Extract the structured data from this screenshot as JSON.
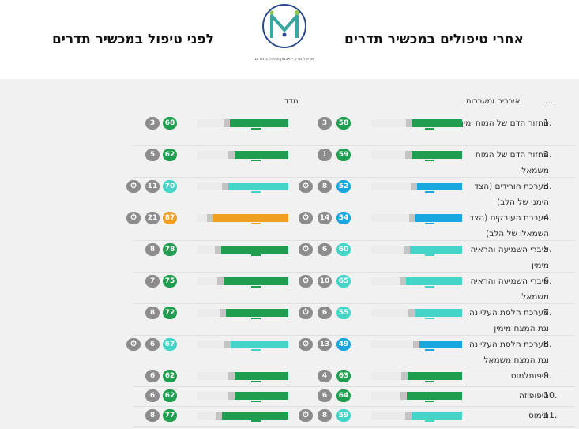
{
  "header": {
    "title_after": "אחרי טיפולים במכשיר תדרים",
    "title_before": "לפני טיפול במכשיר תדרים",
    "logo_caption": "אריאל מרק - אבחון וטיפול בתדרים"
  },
  "table": {
    "menu": "...",
    "col_organs": "איברים ומערכות",
    "col_index": "מדד"
  },
  "colors": {
    "green": "#1e9e4e",
    "teal": "#45d4c8",
    "blue": "#1aa7e0",
    "orange": "#f0a020",
    "gray": "#8c8c8c"
  },
  "rows": [
    {
      "num": "1.",
      "label": "מחזור הדם של המוח ימין",
      "after": {
        "score": "58",
        "level": 58,
        "color": "green",
        "badge2": "3",
        "clock": false
      },
      "before": {
        "score": "68",
        "level": 68,
        "color": "green",
        "badge2": "3",
        "clock": false
      }
    },
    {
      "num": "2.",
      "label": "מחזור הדם של המוח משמאל",
      "after": {
        "score": "59",
        "level": 59,
        "color": "green",
        "badge2": "1",
        "clock": false
      },
      "before": {
        "score": "62",
        "level": 62,
        "color": "green",
        "badge2": "5",
        "clock": false
      }
    },
    {
      "num": "3.",
      "label": "מערכת הורידים (הצד הימני של הלב)",
      "after": {
        "score": "52",
        "level": 52,
        "color": "blue",
        "badge2": "8",
        "clock": true
      },
      "before": {
        "score": "70",
        "level": 70,
        "color": "teal",
        "badge2": "11",
        "clock": true
      }
    },
    {
      "num": "4.",
      "label": "מערכת העורקים (הצד השמאלי של הלב)",
      "after": {
        "score": "54",
        "level": 54,
        "color": "blue",
        "badge2": "14",
        "clock": true
      },
      "before": {
        "score": "87",
        "level": 87,
        "color": "orange",
        "badge2": "21",
        "clock": true
      }
    },
    {
      "num": "5.",
      "label": "איברי השמיעה והראיה מימין",
      "after": {
        "score": "60",
        "level": 60,
        "color": "teal",
        "badge2": "6",
        "clock": true
      },
      "before": {
        "score": "78",
        "level": 78,
        "color": "green",
        "badge2": "8",
        "clock": false
      }
    },
    {
      "num": "6.",
      "label": "איברי השמיעה והראיה משמאל",
      "after": {
        "score": "65",
        "level": 65,
        "color": "teal",
        "badge2": "10",
        "clock": true
      },
      "before": {
        "score": "75",
        "level": 75,
        "color": "green",
        "badge2": "7",
        "clock": false
      }
    },
    {
      "num": "7.",
      "label": "מערכת הלסת העליונה וגת המצח מימין",
      "after": {
        "score": "55",
        "level": 55,
        "color": "teal",
        "badge2": "6",
        "clock": true
      },
      "before": {
        "score": "72",
        "level": 72,
        "color": "green",
        "badge2": "8",
        "clock": false
      }
    },
    {
      "num": "8.",
      "label": "מערכת הלסת העליונה וגת המצח משמאל",
      "after": {
        "score": "49",
        "level": 49,
        "color": "blue",
        "badge2": "13",
        "clock": true
      },
      "before": {
        "score": "67",
        "level": 67,
        "color": "teal",
        "badge2": "6",
        "clock": true
      }
    },
    {
      "num": "9.",
      "label": "היפותלמוס",
      "after": {
        "score": "63",
        "level": 63,
        "color": "green",
        "badge2": "4",
        "clock": false
      },
      "before": {
        "score": "62",
        "level": 62,
        "color": "green",
        "badge2": "6",
        "clock": false
      }
    },
    {
      "num": "10.",
      "label": "היפופיזה",
      "after": {
        "score": "64",
        "level": 64,
        "color": "green",
        "badge2": "6",
        "clock": false
      },
      "before": {
        "score": "62",
        "level": 62,
        "color": "green",
        "badge2": "6",
        "clock": false
      }
    },
    {
      "num": "11.",
      "label": "תימוס",
      "after": {
        "score": "59",
        "level": 59,
        "color": "teal",
        "badge2": "8",
        "clock": true
      },
      "before": {
        "score": "77",
        "level": 77,
        "color": "green",
        "badge2": "8",
        "clock": false
      }
    }
  ]
}
